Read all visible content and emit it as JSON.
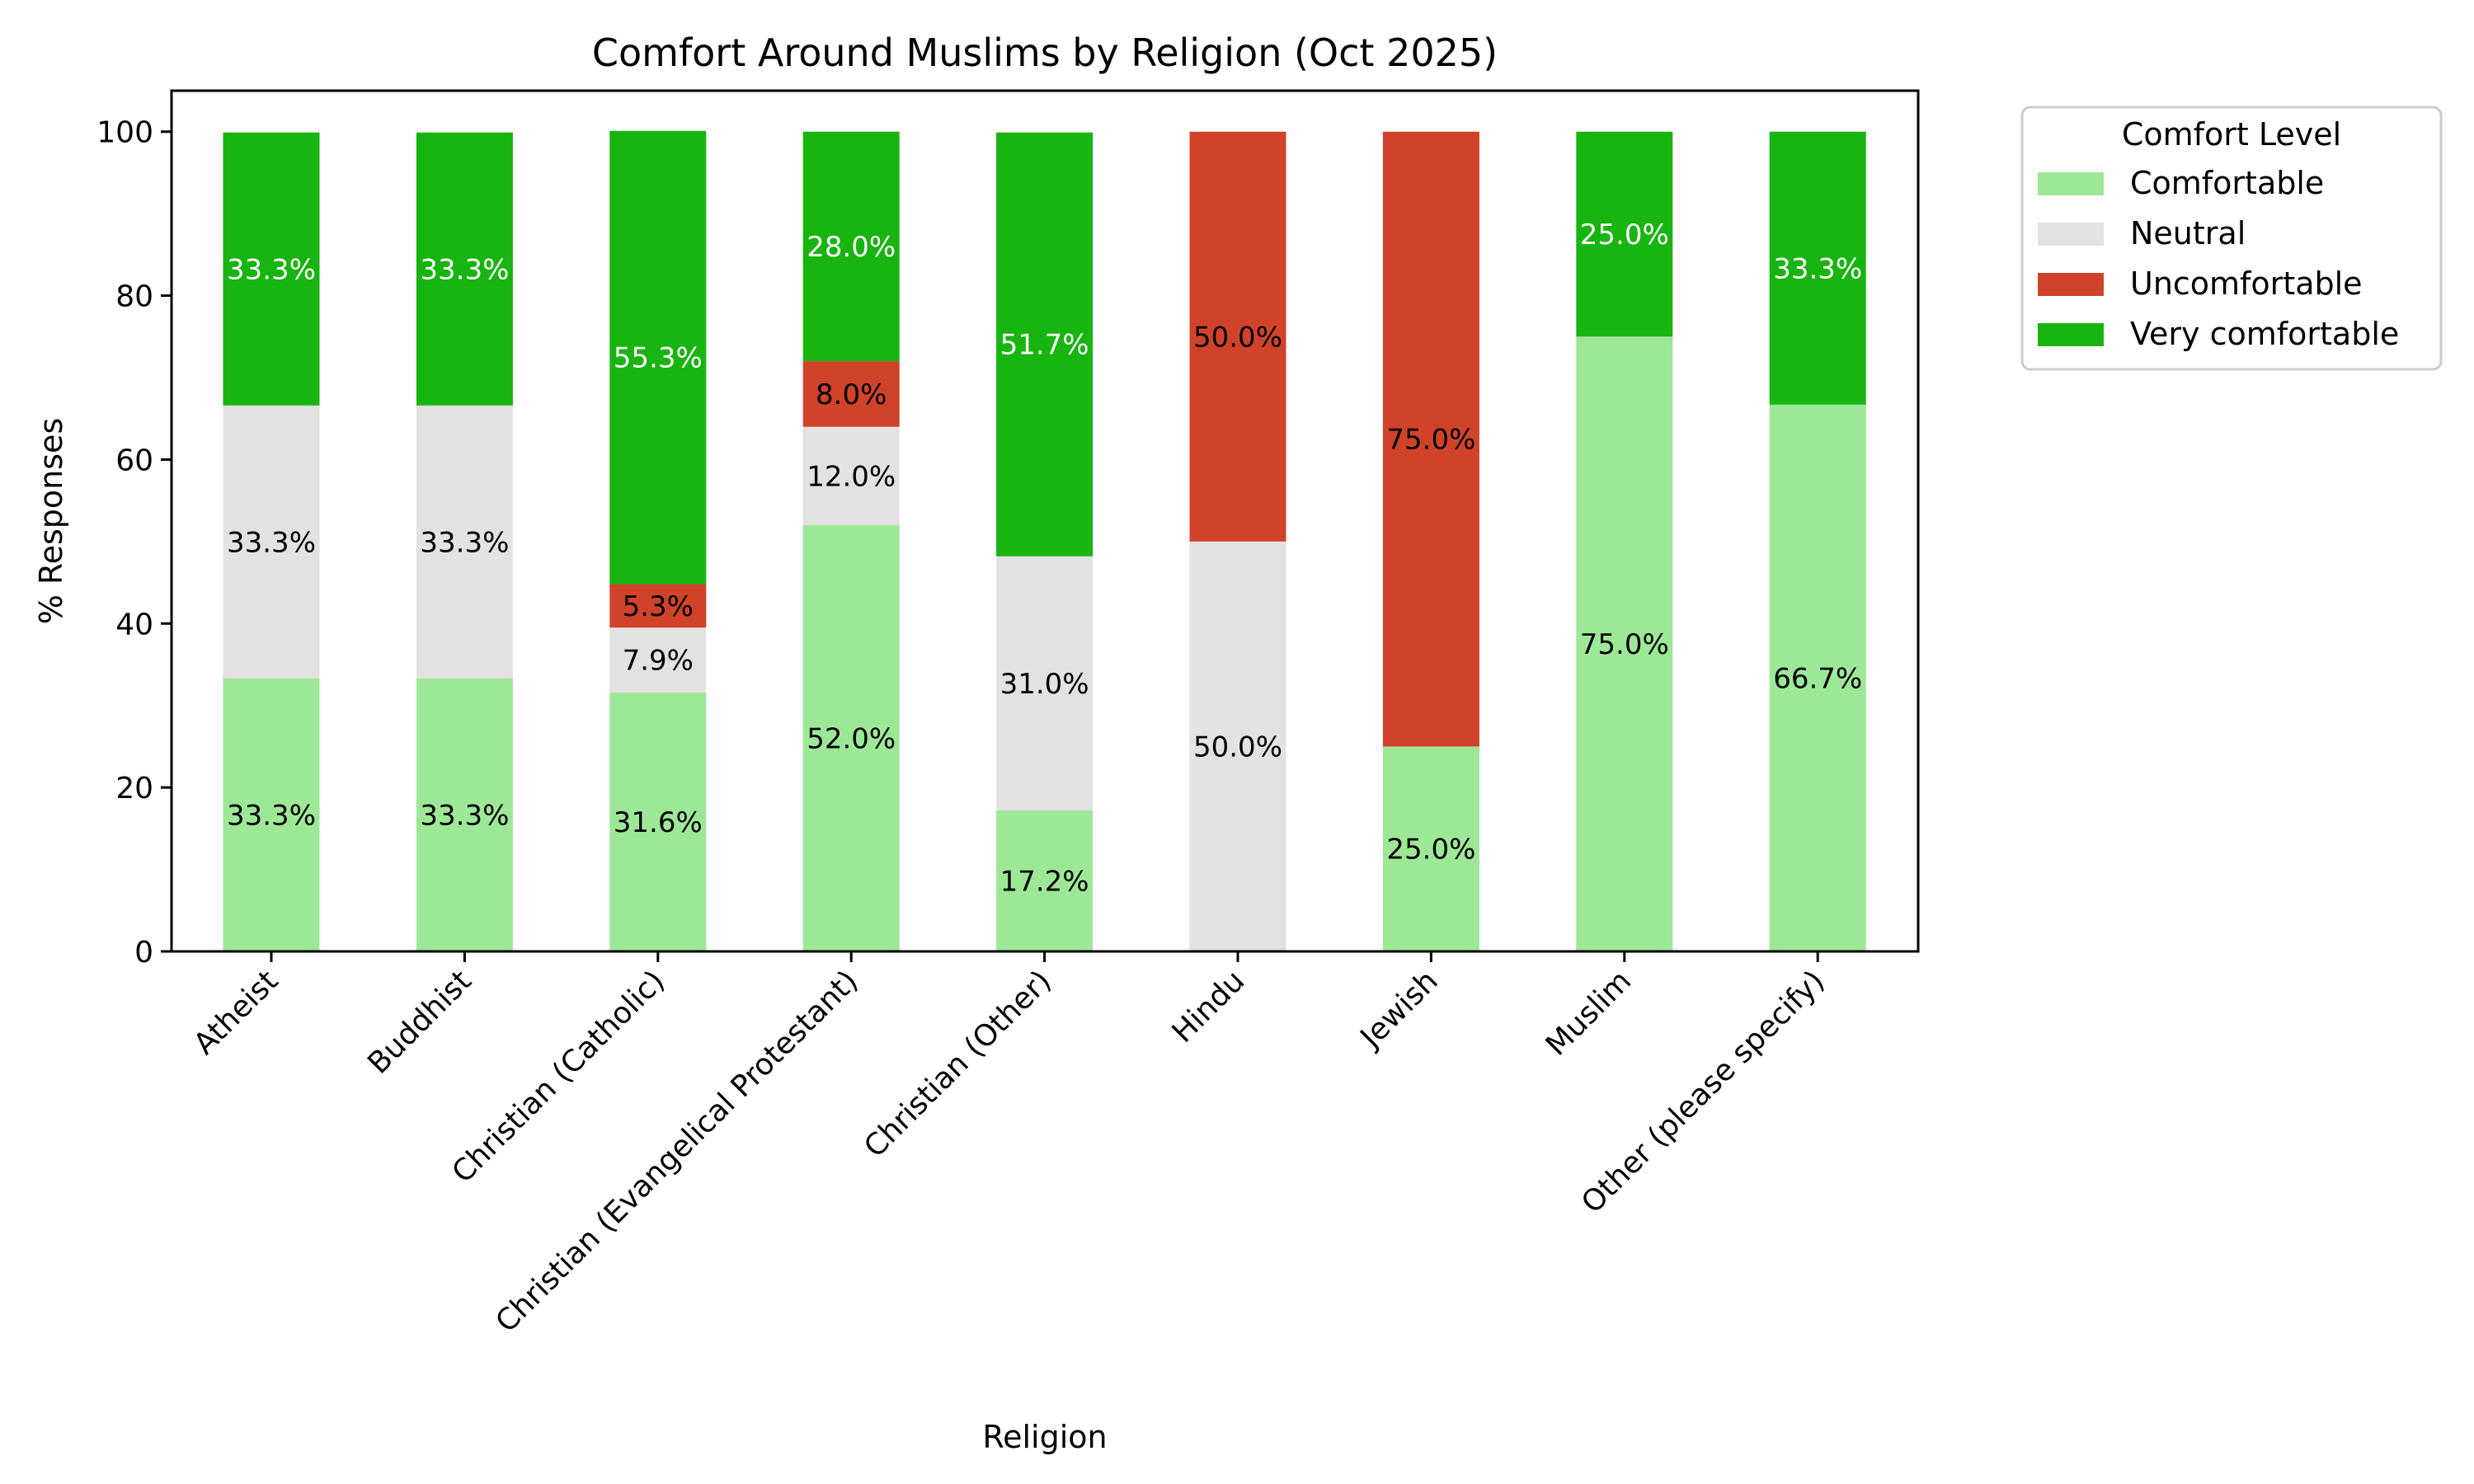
{
  "chart_data": {
    "type": "bar",
    "stacked": true,
    "title": "Comfort Around Muslims by Religion (Oct 2025)",
    "xlabel": "Religion",
    "ylabel": "% Responses",
    "ylim": [
      0,
      105
    ],
    "yticks": [
      0,
      20,
      40,
      60,
      80,
      100
    ],
    "grid": false,
    "legend": {
      "title": "Comfort Level",
      "placement": "outside-top-right"
    },
    "categories": [
      "Atheist",
      "Buddhist",
      "Christian (Catholic)",
      "Christian (Evangelical Protestant)",
      "Christian (Other)",
      "Hindu",
      "Jewish",
      "Muslim",
      "Other (please specify)"
    ],
    "series": [
      {
        "name": "Comfortable",
        "color": "#9de897",
        "values": [
          33.3,
          33.3,
          31.6,
          52.0,
          17.2,
          0,
          25.0,
          75.0,
          66.7
        ],
        "label_color": "#000000"
      },
      {
        "name": "Neutral",
        "color": "#e3e1e2",
        "values": [
          33.3,
          33.3,
          7.9,
          12.0,
          31.0,
          50.0,
          0,
          0,
          0
        ],
        "label_color": "#000000"
      },
      {
        "name": "Uncomfortable",
        "color": "#d0432a",
        "values": [
          0,
          0,
          5.3,
          8.0,
          0,
          50.0,
          75.0,
          0,
          0
        ],
        "label_color": "#000000"
      },
      {
        "name": "Very comfortable",
        "color": "#18b410",
        "values": [
          33.3,
          33.3,
          55.3,
          28.0,
          51.7,
          0,
          0,
          25.0,
          33.3
        ],
        "label_color": "#ffffff"
      }
    ]
  }
}
